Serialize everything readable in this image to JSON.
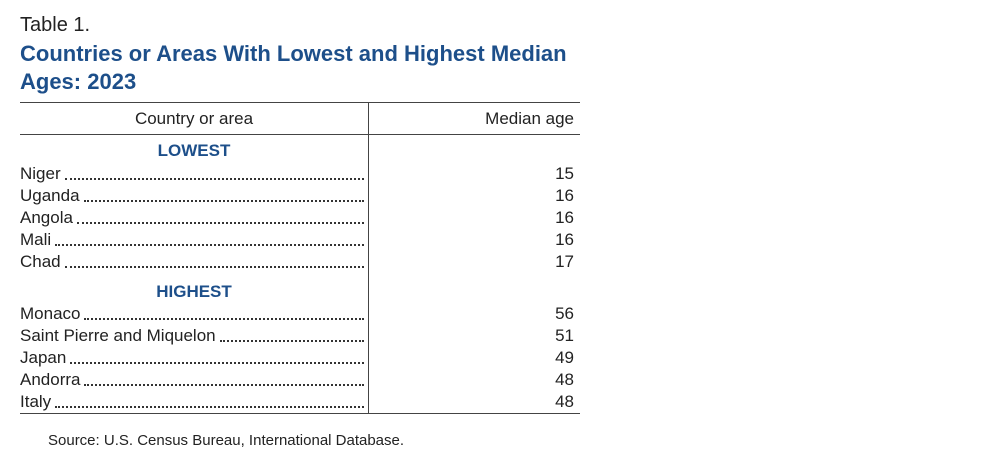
{
  "label": "Table 1.",
  "title": "Countries or Areas With Lowest and Highest Median Ages: 2023",
  "table": {
    "columns": [
      "Country or area",
      "Median age"
    ],
    "groups": [
      {
        "name": "LOWEST",
        "rows": [
          [
            "Niger",
            15
          ],
          [
            "Uganda",
            16
          ],
          [
            "Angola",
            16
          ],
          [
            "Mali",
            16
          ],
          [
            "Chad",
            17
          ]
        ]
      },
      {
        "name": "HIGHEST",
        "rows": [
          [
            "Monaco",
            56
          ],
          [
            "Saint Pierre and Miquelon",
            51
          ],
          [
            "Japan",
            49
          ],
          [
            "Andorra",
            48
          ],
          [
            "Italy",
            48
          ]
        ]
      }
    ]
  },
  "source": "Source: U.S. Census Bureau, International Database."
}
